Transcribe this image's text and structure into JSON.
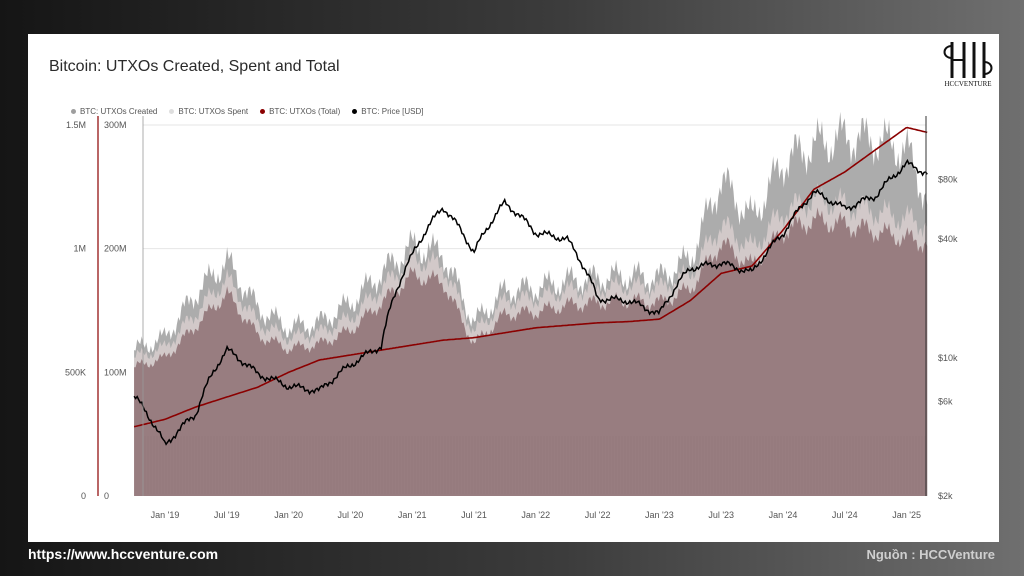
{
  "title": "Bitcoin: UTXOs Created, Spent and Total",
  "logo": {
    "text": "HCCVENTURE",
    "icon": "hcc-monogram-logo"
  },
  "legend": [
    {
      "label": "BTC: UTXOs Created",
      "color": "#9e9e9e"
    },
    {
      "label": "BTC: UTXOs Spent",
      "color": "#dedede"
    },
    {
      "label": "BTC: UTXOs (Total)",
      "color": "#8b0000"
    },
    {
      "label": "BTC: Price [USD]",
      "color": "#000000"
    }
  ],
  "footer": {
    "url": "https://www.hccventure.com",
    "source": "Nguồn : HCCVenture"
  },
  "chart_data": {
    "type": "area",
    "x_ticks": [
      "Jan '19",
      "Jul '19",
      "Jan '20",
      "Jul '20",
      "Jan '21",
      "Jul '21",
      "Jan '22",
      "Jul '22",
      "Jan '23",
      "Jul '23",
      "Jan '24",
      "Jul '24",
      "Jan '25"
    ],
    "axis_left_outer": {
      "ticks": [
        "0",
        "500K",
        "1M",
        "1.5M"
      ],
      "values": [
        0,
        500000,
        1000000,
        1500000
      ],
      "range": [
        0,
        1520000
      ]
    },
    "axis_left_inner": {
      "ticks": [
        "0",
        "100M",
        "200M",
        "300M"
      ],
      "values": [
        0,
        100000000,
        200000000,
        300000000
      ],
      "range": [
        0,
        304000000
      ]
    },
    "axis_right": {
      "ticks": [
        "$2k",
        "$6k",
        "$10k",
        "$40k",
        "$80k"
      ],
      "values": [
        2000,
        6000,
        10000,
        40000,
        80000
      ],
      "scale": "log",
      "range": [
        2000,
        160000
      ]
    },
    "grid": true,
    "legend_position": "top-left",
    "x": [
      "2018-10",
      "2019-01",
      "2019-04",
      "2019-07",
      "2019-10",
      "2020-01",
      "2020-04",
      "2020-07",
      "2020-10",
      "2021-01",
      "2021-04",
      "2021-07",
      "2021-10",
      "2022-01",
      "2022-04",
      "2022-07",
      "2022-10",
      "2023-01",
      "2023-04",
      "2023-07",
      "2023-10",
      "2024-01",
      "2024-04",
      "2024-07",
      "2024-10",
      "2025-01",
      "2025-03"
    ],
    "series": [
      {
        "name": "BTC: UTXOs Created",
        "axis": "left_outer",
        "values": [
          590000,
          640000,
          820000,
          950000,
          760000,
          680000,
          700000,
          780000,
          900000,
          1010000,
          980000,
          700000,
          830000,
          840000,
          870000,
          880000,
          890000,
          880000,
          960000,
          1280000,
          1120000,
          1350000,
          1420000,
          1450000,
          1440000,
          1400000,
          1200000
        ]
      },
      {
        "name": "BTC: UTXOs Spent",
        "axis": "left_outer",
        "values": [
          560000,
          600000,
          740000,
          880000,
          700000,
          640000,
          660000,
          720000,
          840000,
          960000,
          930000,
          660000,
          790000,
          800000,
          830000,
          840000,
          850000,
          840000,
          900000,
          1100000,
          1000000,
          1150000,
          1200000,
          1180000,
          1150000,
          1120000,
          1100000
        ]
      },
      {
        "name": "BTC: UTXOs (Total)",
        "axis": "left_inner",
        "values": [
          56000000,
          62000000,
          72000000,
          80000000,
          88000000,
          100000000,
          110000000,
          114000000,
          118000000,
          122000000,
          126000000,
          128000000,
          132000000,
          136000000,
          138000000,
          140000000,
          141000000,
          143000000,
          158000000,
          180000000,
          186000000,
          215000000,
          248000000,
          262000000,
          280000000,
          298000000,
          294000000
        ]
      },
      {
        "name": "BTC: Price [USD]",
        "axis": "right",
        "values": [
          6400,
          3600,
          5200,
          11000,
          8300,
          7200,
          6800,
          9200,
          11500,
          33000,
          58000,
          34000,
          61000,
          43000,
          40000,
          20000,
          19500,
          16600,
          28500,
          30200,
          27000,
          42500,
          69000,
          57000,
          66000,
          96000,
          86000
        ]
      }
    ]
  }
}
